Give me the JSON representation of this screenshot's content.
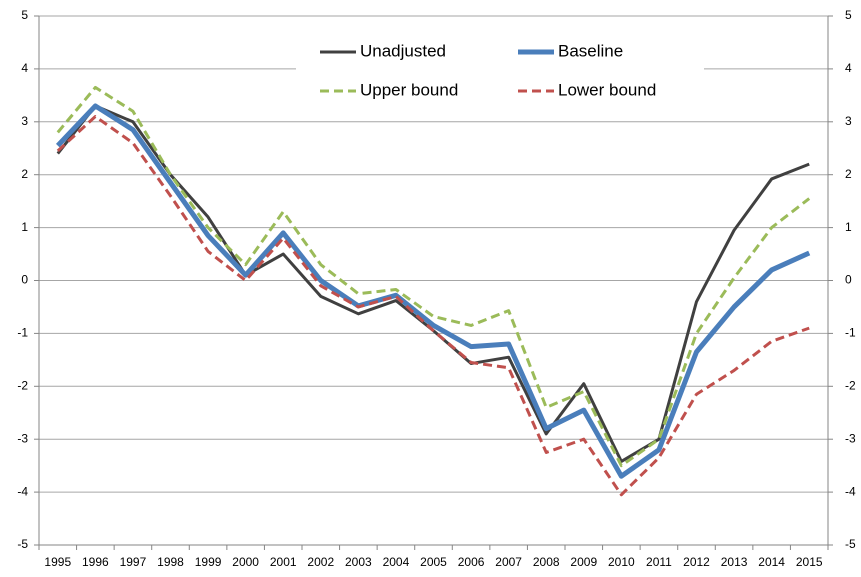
{
  "chart_data": {
    "type": "line",
    "categories": [
      "1995",
      "1996",
      "1997",
      "1998",
      "1999",
      "2000",
      "2001",
      "2002",
      "2003",
      "2004",
      "2005",
      "2006",
      "2007",
      "2008",
      "2009",
      "2010",
      "2011",
      "2012",
      "2013",
      "2014",
      "2015"
    ],
    "series": [
      {
        "name": "Unadjusted",
        "color": "#404040",
        "dashed": false,
        "values": [
          2.4,
          3.3,
          3.0,
          2.0,
          1.2,
          0.1,
          0.5,
          -0.3,
          -0.63,
          -0.38,
          -0.95,
          -1.57,
          -1.45,
          -2.9,
          -1.95,
          -3.42,
          -3.0,
          -0.4,
          0.95,
          1.92,
          2.2
        ]
      },
      {
        "name": "Baseline",
        "color": "#4a7ebb",
        "dashed": false,
        "values": [
          2.55,
          3.3,
          2.85,
          1.85,
          0.85,
          0.1,
          0.9,
          0.0,
          -0.48,
          -0.28,
          -0.85,
          -1.25,
          -1.2,
          -2.8,
          -2.45,
          -3.7,
          -3.2,
          -1.35,
          -0.5,
          0.2,
          0.52
        ]
      },
      {
        "name": "Upper bound",
        "color": "#9bbb59",
        "dashed": true,
        "values": [
          2.8,
          3.65,
          3.2,
          2.0,
          1.0,
          0.3,
          1.3,
          0.3,
          -0.25,
          -0.17,
          -0.68,
          -0.85,
          -0.57,
          -2.4,
          -2.1,
          -3.5,
          -3.0,
          -1.0,
          0.05,
          1.0,
          1.55
        ]
      },
      {
        "name": "Lower bound",
        "color": "#c0504d",
        "dashed": true,
        "values": [
          2.45,
          3.1,
          2.6,
          1.6,
          0.55,
          0.0,
          0.8,
          -0.1,
          -0.5,
          -0.3,
          -0.95,
          -1.55,
          -1.65,
          -3.25,
          -3.0,
          -4.05,
          -3.35,
          -2.15,
          -1.7,
          -1.15,
          -0.9
        ]
      }
    ],
    "ylim": [
      -5,
      5
    ],
    "yticks": [
      -5,
      -4,
      -3,
      -2,
      -1,
      0,
      1,
      2,
      3,
      4,
      5
    ],
    "y2lim": [
      -5,
      5
    ],
    "y2ticks": [
      -5,
      -4,
      -3,
      -2,
      -1,
      0,
      1,
      2,
      3,
      4,
      5
    ],
    "grid": true,
    "legend": "top"
  }
}
